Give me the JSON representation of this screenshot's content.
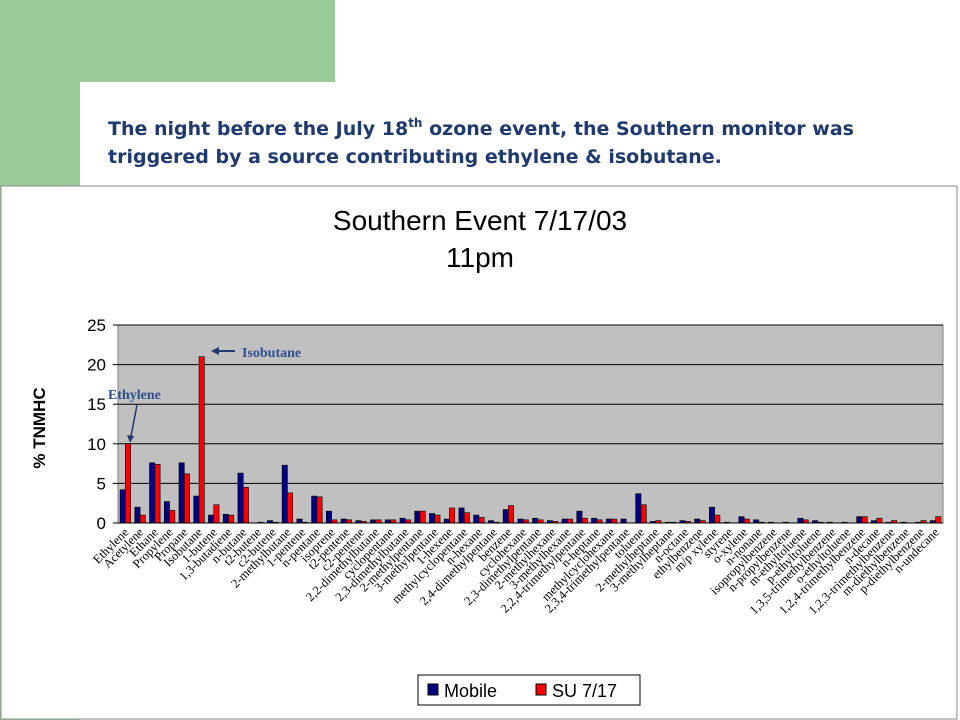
{
  "header": {
    "title_parts": [
      "The night before the July 18",
      "th",
      " ozone event, the Southern monitor was",
      "triggered by a source contributing ethylene & isobutane."
    ]
  },
  "chart_data": {
    "type": "bar",
    "title": "Southern Event 7/17/03",
    "subtitle": "11pm",
    "y_label": "% TNMHC",
    "annotations": [
      "Isobutane",
      "Ethylene"
    ],
    "categories": [
      "Ethylene",
      "Acetylene",
      "Ethane",
      "Propylene",
      "Propane",
      "Isobutane",
      "1-butene",
      "1,3-butadiene",
      "n-butane",
      "t2-butene",
      "c2-butene",
      "2-methylbutane",
      "1-pentene",
      "n-pentane",
      "isoprene",
      "t2-pentene",
      "c2-pentene",
      "2,2-dimethylbutane",
      "cyclopentane",
      "2,3-dimethylbutane",
      "2-methylpentane",
      "3-methylpentane",
      "1-hexene",
      "methylcyclopentane",
      "n-hexane",
      "2,4-dimethylpentane",
      "benzene",
      "cyclohexane",
      "2,3-dimethylpentane",
      "2-methylhexane",
      "3-methylhexane",
      "2,2,4-trimethylpentane",
      "n-heptane",
      "methylcyclohexane",
      "2,3,4-trimethylpentane",
      "toluene",
      "2-methylheptane",
      "3-methylheptane",
      "n-octane",
      "ethylbenzene",
      "m/p xylene",
      "styrene",
      "o-xylene",
      "n-nonane",
      "isopropylbenzene",
      "n-propylbenzene",
      "m-ethyltoluene",
      "p-ethyltoluene",
      "1,3,5-trimethylbenzene",
      "o-ethyltoluene",
      "1,2,4-trimethylbenzene",
      "n-decane",
      "1,2,3-trimethylbenzene",
      "m-diethylbenzene",
      "p-diethylbenzene",
      "n-undecane"
    ],
    "series": [
      {
        "name": "Mobile",
        "color": "#000080",
        "values": [
          4.2,
          2,
          7.6,
          2.7,
          7.6,
          3.4,
          1,
          1.1,
          6.3,
          0,
          0.3,
          7.3,
          0.5,
          3.4,
          1.5,
          0.5,
          0.3,
          0.4,
          0.4,
          0.6,
          1.5,
          1.2,
          0.5,
          1.9,
          1,
          0.3,
          1.7,
          0.5,
          0.6,
          0.3,
          0.5,
          1.5,
          0.6,
          0.5,
          0.5,
          3.7,
          0.2,
          0.1,
          0.3,
          0.5,
          2,
          0.1,
          0.8,
          0.4,
          0.1,
          0.1,
          0.6,
          0.3,
          0.1,
          0.1,
          0.8,
          0.3,
          0.1,
          0.1,
          0.1,
          0.3
        ]
      },
      {
        "name": "SU 7/17",
        "color": "#ff0000",
        "values": [
          10,
          1,
          7.4,
          1.6,
          6.2,
          21,
          2.3,
          1,
          4.5,
          0.1,
          0.1,
          3.8,
          0.1,
          3.3,
          0.4,
          0.4,
          0.2,
          0.4,
          0.4,
          0.4,
          1.5,
          1,
          1.9,
          1.3,
          0.7,
          0.1,
          2.2,
          0.4,
          0.4,
          0.2,
          0.5,
          0.6,
          0.4,
          0.5,
          0,
          2.3,
          0.3,
          0.1,
          0.2,
          0.3,
          1,
          0,
          0.5,
          0.1,
          0,
          0,
          0.4,
          0.1,
          0,
          0,
          0.8,
          0.6,
          0.3,
          0,
          0.3,
          0.8
        ]
      }
    ],
    "ylim": [
      0,
      25
    ],
    "yticks": [
      0,
      5,
      10,
      15,
      20,
      25
    ],
    "grid": true
  }
}
